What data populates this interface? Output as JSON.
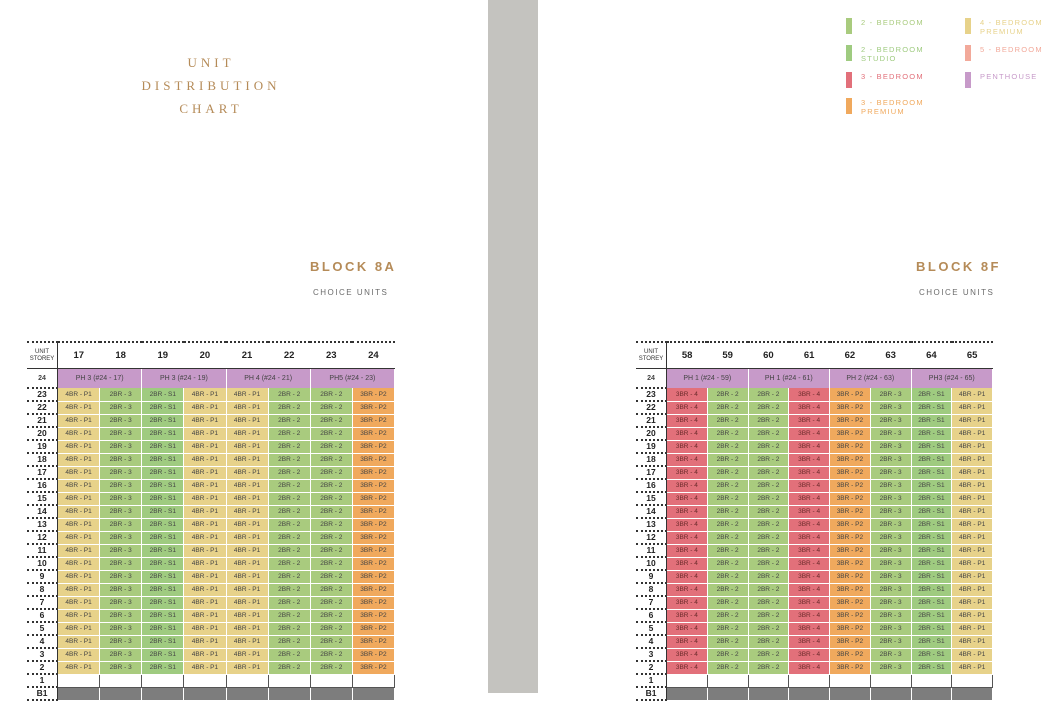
{
  "chart_title_lines": [
    "UNIT",
    "DISTRIBUTION",
    "CHART"
  ],
  "legend": [
    {
      "label": "2 - BEDROOM",
      "color": "#a9cb7e"
    },
    {
      "label": "4 - BEDROOM PREMIUM",
      "color": "#e7d28a"
    },
    {
      "label": "2 - BEDROOM STUDIO",
      "color": "#9fcb80"
    },
    {
      "label": "5 - BEDROOM",
      "color": "#f2a99a"
    },
    {
      "label": "3 - BEDROOM",
      "color": "#e2707a"
    },
    {
      "label": "PENTHOUSE",
      "color": "#c79ac9"
    },
    {
      "label": "3 - BEDROOM PREMIUM",
      "color": "#f0a95d"
    }
  ],
  "corner_label": [
    "UNIT",
    "STOREY"
  ],
  "blocks": [
    {
      "title": "BLOCK 8A",
      "subtitle": "CHOICE UNITS",
      "units": [
        "17",
        "18",
        "19",
        "20",
        "21",
        "22",
        "23",
        "24"
      ],
      "penthouse_floor": "24",
      "penthouses": [
        "PH 3 (#24 - 17)",
        "PH 3 (#24 - 19)",
        "PH 4 (#24 - 21)",
        "PH5 (#24 - 23)"
      ],
      "row_types": [
        "4BR - P1",
        "2BR - 3",
        "2BR - S1",
        "4BR - P1",
        "4BR - P1",
        "2BR - 2",
        "2BR - 2",
        "3BR - P2"
      ],
      "row_classes": [
        "c4p",
        "c2b",
        "c2s",
        "c4p",
        "c4p",
        "c2b",
        "c2b",
        "c3p"
      ],
      "floors": [
        "23",
        "22",
        "21",
        "20",
        "19",
        "18",
        "17",
        "16",
        "15",
        "14",
        "13",
        "12",
        "11",
        "10",
        "9",
        "8",
        "7",
        "6",
        "5",
        "4",
        "3",
        "2"
      ],
      "ground": [
        "1",
        "B1"
      ]
    },
    {
      "title": "BLOCK 8F",
      "subtitle": "CHOICE UNITS",
      "units": [
        "58",
        "59",
        "60",
        "61",
        "62",
        "63",
        "64",
        "65"
      ],
      "penthouse_floor": "24",
      "penthouses": [
        "PH 1 (#24 - 59)",
        "PH 1 (#24 - 61)",
        "PH 2 (#24 - 63)",
        "PH3 (#24 - 65)"
      ],
      "row_types": [
        "3BR - 4",
        "2BR - 2",
        "2BR - 2",
        "3BR - 4",
        "3BR - P2",
        "2BR - 3",
        "2BR - S1",
        "4BR - P1"
      ],
      "row_classes": [
        "c3b",
        "c2b",
        "c2b",
        "c3b",
        "c3p",
        "c2b",
        "c2s",
        "c4p"
      ],
      "floors": [
        "23",
        "22",
        "21",
        "20",
        "19",
        "18",
        "17",
        "16",
        "15",
        "14",
        "13",
        "12",
        "11",
        "10",
        "9",
        "8",
        "7",
        "6",
        "5",
        "4",
        "3",
        "2"
      ],
      "ground": [
        "1",
        "B1"
      ]
    }
  ]
}
